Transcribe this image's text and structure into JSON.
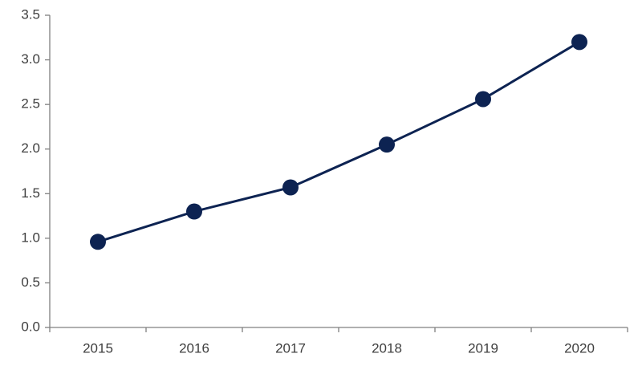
{
  "chart_data": {
    "type": "line",
    "categories": [
      "2015",
      "2016",
      "2017",
      "2018",
      "2019",
      "2020"
    ],
    "series": [
      {
        "color": "#0d2352",
        "values": [
          0.96,
          1.3,
          1.57,
          2.05,
          2.56,
          3.2
        ]
      }
    ],
    "ylim": [
      0,
      3.5
    ],
    "yticks": [
      {
        "value": 0,
        "label": "0.0"
      },
      0.5,
      {
        "value": 1,
        "label": "1.0"
      },
      1.5,
      {
        "value": 2,
        "label": "2.0"
      },
      2.5,
      {
        "value": 3,
        "label": "3.0"
      },
      3.5
    ],
    "grid": false,
    "markers": true
  }
}
